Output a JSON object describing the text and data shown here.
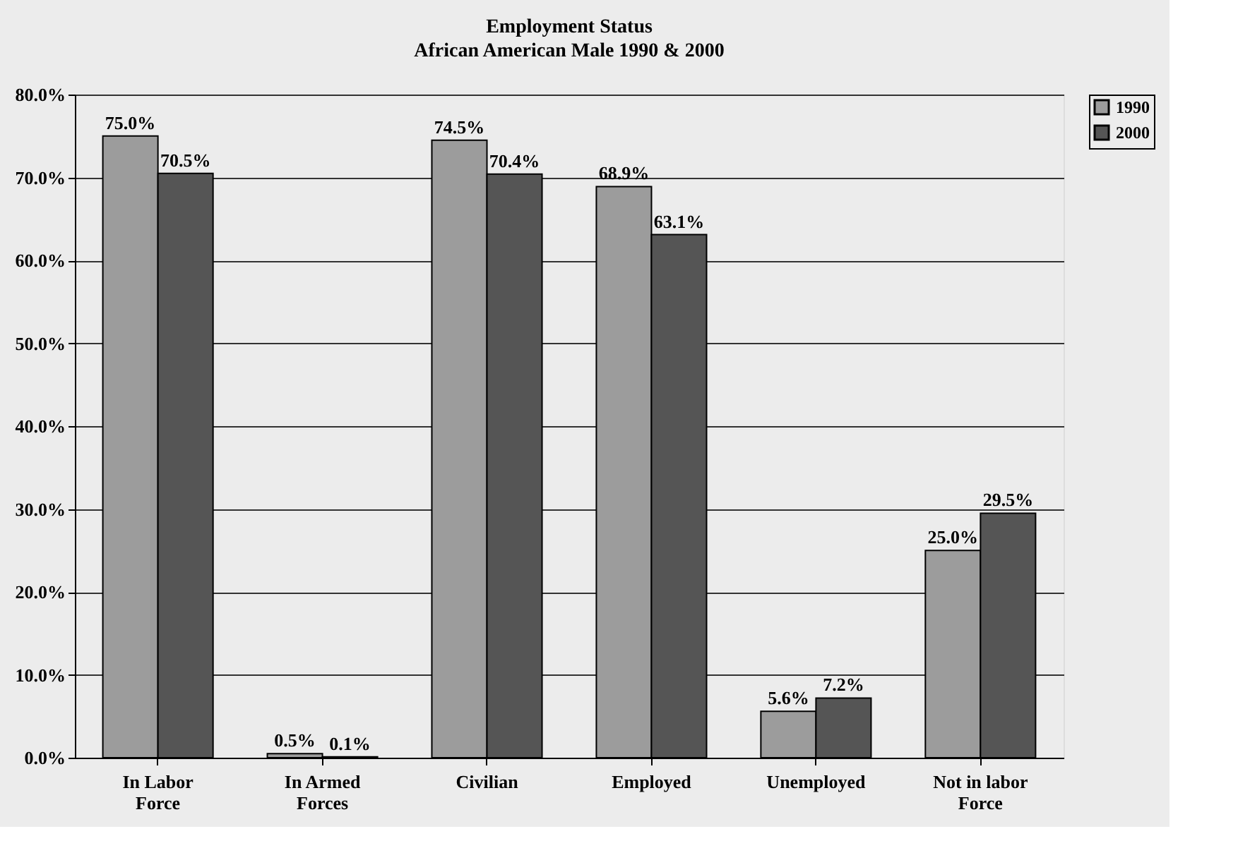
{
  "chart_data": {
    "type": "bar",
    "title": "Employment Status",
    "subtitle": "African American Male 1990 & 2000",
    "categories": [
      "In Labor\nForce",
      "In Armed\nForces",
      "Civilian",
      "Employed",
      "Unemployed",
      "Not in labor\nForce"
    ],
    "series": [
      {
        "name": "1990",
        "color": "#9c9c9c",
        "values": [
          75.0,
          0.5,
          74.5,
          68.9,
          5.6,
          25.0
        ],
        "value_labels": [
          "75.0%",
          "0.5%",
          "74.5%",
          "68.9%",
          "5.6%",
          "25.0%"
        ]
      },
      {
        "name": "2000",
        "color": "#555555",
        "values": [
          70.5,
          0.1,
          70.4,
          63.1,
          7.2,
          29.5
        ],
        "value_labels": [
          "70.5%",
          "0.1%",
          "70.4%",
          "63.1%",
          "7.2%",
          "29.5%"
        ]
      }
    ],
    "ylim": [
      0,
      80
    ],
    "yticks": [
      {
        "value": 0,
        "label": "0.0%"
      },
      {
        "value": 10,
        "label": "10.0%"
      },
      {
        "value": 20,
        "label": "20.0%"
      },
      {
        "value": 30,
        "label": "30.0%"
      },
      {
        "value": 40,
        "label": "40.0%"
      },
      {
        "value": 50,
        "label": "50.0%"
      },
      {
        "value": 60,
        "label": "60.0%"
      },
      {
        "value": 70,
        "label": "70.0%"
      },
      {
        "value": 80,
        "label": "80.0%"
      }
    ],
    "grid": "y",
    "legend": "right"
  }
}
